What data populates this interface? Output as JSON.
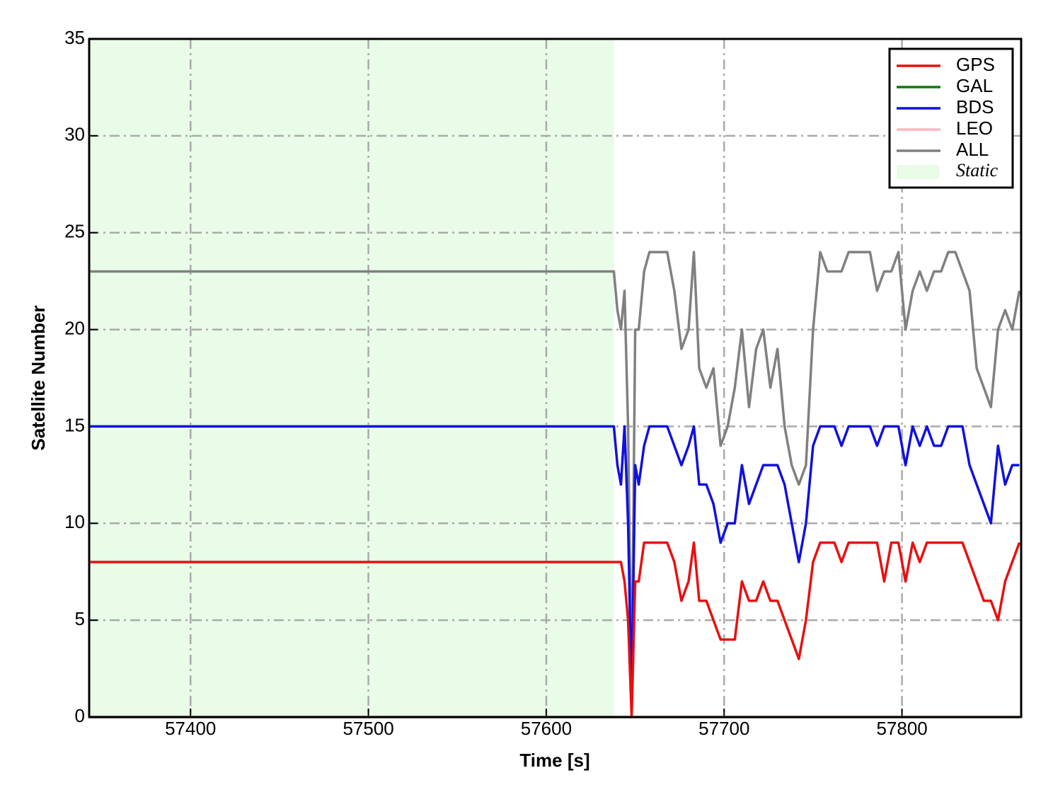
{
  "chart_data": {
    "type": "line",
    "xlabel": "Time [s]",
    "ylabel": "Satellite Number",
    "x": [
      57343,
      57638,
      57640,
      57642,
      57644,
      57646,
      57648,
      57650,
      57652,
      57655,
      57658,
      57662,
      57668,
      57672,
      57676,
      57680,
      57683,
      57686,
      57690,
      57694,
      57698,
      57702,
      57706,
      57710,
      57714,
      57718,
      57722,
      57726,
      57730,
      57734,
      57738,
      57742,
      57746,
      57750,
      57754,
      57758,
      57762,
      57766,
      57770,
      57774,
      57778,
      57782,
      57786,
      57790,
      57794,
      57798,
      57802,
      57806,
      57810,
      57814,
      57818,
      57822,
      57826,
      57830,
      57834,
      57838,
      57842,
      57846,
      57850,
      57854,
      57858,
      57862,
      57866
    ],
    "series": [
      {
        "name": "GPS",
        "color": "#e81010",
        "values": [
          8,
          8,
          8,
          8,
          7,
          5,
          0,
          7,
          7,
          9,
          9,
          9,
          9,
          8,
          6,
          7,
          9,
          6,
          6,
          5,
          4,
          4,
          4,
          7,
          6,
          6,
          7,
          6,
          6,
          5,
          4,
          3,
          5,
          8,
          9,
          9,
          9,
          8,
          9,
          9,
          9,
          9,
          9,
          7,
          9,
          9,
          7,
          9,
          8,
          9,
          9,
          9,
          9,
          9,
          9,
          8,
          7,
          6,
          6,
          5,
          7,
          8,
          9
        ]
      },
      {
        "name": "GAL",
        "color": "#0e7a0e",
        "values": [
          0,
          0,
          0,
          0,
          0,
          0,
          0,
          0,
          0,
          0,
          0,
          0,
          0,
          0,
          0,
          0,
          0,
          0,
          0,
          0,
          0,
          0,
          0,
          0,
          0,
          0,
          0,
          0,
          0,
          0,
          0,
          0,
          0,
          0,
          0,
          0,
          0,
          0,
          0,
          0,
          0,
          0,
          0,
          0,
          0,
          0,
          0,
          0,
          0,
          0,
          0,
          0,
          0,
          0,
          0,
          0,
          0,
          0,
          0,
          0,
          0,
          0,
          0
        ]
      },
      {
        "name": "BDS",
        "color": "#1010e0",
        "values": [
          15,
          15,
          13,
          12,
          15,
          10,
          1,
          13,
          12,
          14,
          15,
          15,
          15,
          14,
          13,
          14,
          15,
          12,
          12,
          11,
          9,
          10,
          10,
          13,
          11,
          12,
          13,
          13,
          13,
          12,
          10,
          8,
          10,
          14,
          15,
          15,
          15,
          14,
          15,
          15,
          15,
          15,
          14,
          15,
          15,
          15,
          13,
          15,
          14,
          15,
          14,
          14,
          15,
          15,
          15,
          13,
          12,
          11,
          10,
          14,
          12,
          13,
          13
        ]
      },
      {
        "name": "LEO",
        "color": "#ffb6c1",
        "values": [
          0,
          0,
          0,
          0,
          0,
          0,
          0,
          0,
          0,
          0,
          0,
          0,
          0,
          0,
          0,
          0,
          0,
          0,
          0,
          0,
          0,
          0,
          0,
          0,
          0,
          0,
          0,
          0,
          0,
          0,
          0,
          0,
          0,
          0,
          0,
          0,
          0,
          0,
          0,
          0,
          0,
          0,
          0,
          0,
          0,
          0,
          0,
          0,
          0,
          0,
          0,
          0,
          0,
          0,
          0,
          0,
          0,
          0,
          0,
          0,
          0,
          0,
          0
        ]
      },
      {
        "name": "ALL",
        "color": "#808080",
        "values": [
          23,
          23,
          21,
          20,
          22,
          15,
          1,
          20,
          20,
          23,
          24,
          24,
          24,
          22,
          19,
          20,
          24,
          18,
          17,
          18,
          14,
          15,
          17,
          20,
          16,
          19,
          20,
          17,
          19,
          15,
          13,
          12,
          13,
          20,
          24,
          23,
          23,
          23,
          24,
          24,
          24,
          24,
          22,
          23,
          23,
          24,
          20,
          22,
          23,
          22,
          23,
          23,
          24,
          24,
          23,
          22,
          18,
          17,
          16,
          20,
          21,
          20,
          22
        ]
      }
    ],
    "static_span": [
      57343,
      57638
    ],
    "static_label": "Static",
    "static_color": "#e8fce8",
    "xlim": [
      57343,
      57867
    ],
    "xticks": [
      57400,
      57500,
      57600,
      57700,
      57800
    ],
    "ylim": [
      0,
      35
    ],
    "yticks": [
      0,
      5,
      10,
      15,
      20,
      25,
      30,
      35
    ],
    "grid": true,
    "legend": "upper right"
  }
}
